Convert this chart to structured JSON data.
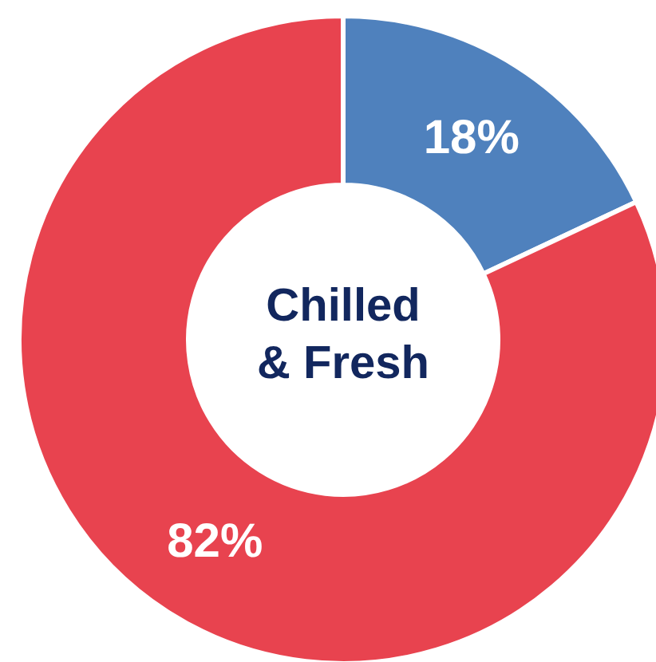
{
  "chart_data": {
    "type": "donut",
    "title": "Chilled & Fresh",
    "categories": [
      null,
      null
    ],
    "values": [
      18,
      82
    ],
    "colors": [
      "#4f81bd",
      "#e8434f"
    ],
    "value_labels": [
      "18%",
      "82%"
    ]
  }
}
